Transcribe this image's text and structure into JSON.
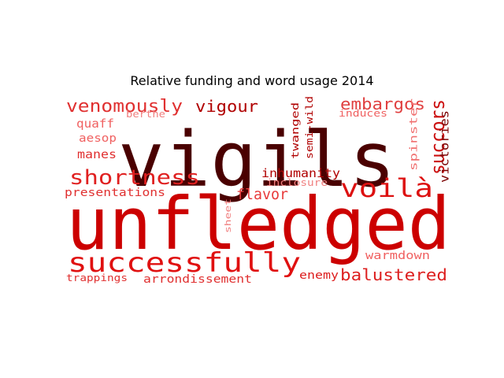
{
  "chart_data": {
    "type": "wordcloud",
    "title": "Relative funding and word usage 2014",
    "words": [
      {
        "text": "vigils",
        "weight": 100,
        "color": "#4a0000",
        "orientation": "horizontal"
      },
      {
        "text": "unfledged",
        "weight": 95,
        "color": "#cc0000",
        "orientation": "horizontal"
      },
      {
        "text": "successfully",
        "weight": 48,
        "color": "#e01010",
        "orientation": "horizontal"
      },
      {
        "text": "voilà",
        "weight": 42,
        "color": "#dd1010",
        "orientation": "horizontal"
      },
      {
        "text": "shortness",
        "weight": 34,
        "color": "#e02020",
        "orientation": "horizontal"
      },
      {
        "text": "venomously",
        "weight": 30,
        "color": "#e03030",
        "orientation": "horizontal"
      },
      {
        "text": "succors",
        "weight": 28,
        "color": "#cc1010",
        "orientation": "vertical"
      },
      {
        "text": "embargos",
        "weight": 27,
        "color": "#e04040",
        "orientation": "horizontal"
      },
      {
        "text": "balustered",
        "weight": 26,
        "color": "#dd2020",
        "orientation": "horizontal"
      },
      {
        "text": "vigour",
        "weight": 24,
        "color": "#b00000",
        "orientation": "horizontal"
      },
      {
        "text": "flavor",
        "weight": 22,
        "color": "#e83a3a",
        "orientation": "horizontal"
      },
      {
        "text": "inhumanity",
        "weight": 20,
        "color": "#b00000",
        "orientation": "horizontal"
      },
      {
        "text": "victories",
        "weight": 19,
        "color": "#7a0000",
        "orientation": "vertical"
      },
      {
        "text": "spinster",
        "weight": 17,
        "color": "#f07070",
        "orientation": "vertical"
      },
      {
        "text": "presentations",
        "weight": 16,
        "color": "#e03030",
        "orientation": "horizontal"
      },
      {
        "text": "arrondissement",
        "weight": 16,
        "color": "#e03030",
        "orientation": "horizontal"
      },
      {
        "text": "warmdown",
        "weight": 16,
        "color": "#f06060",
        "orientation": "horizontal"
      },
      {
        "text": "enemy",
        "weight": 16,
        "color": "#dd2020",
        "orientation": "horizontal"
      },
      {
        "text": "quaff",
        "weight": 16,
        "color": "#f06060",
        "orientation": "horizontal"
      },
      {
        "text": "aesop",
        "weight": 15,
        "color": "#f06060",
        "orientation": "horizontal"
      },
      {
        "text": "manes",
        "weight": 15,
        "color": "#e03030",
        "orientation": "horizontal"
      },
      {
        "text": "twanged",
        "weight": 13,
        "color": "#b00000",
        "orientation": "vertical"
      },
      {
        "text": "semi-wild",
        "weight": 13,
        "color": "#b00000",
        "orientation": "vertical"
      },
      {
        "text": "trappings",
        "weight": 13,
        "color": "#e03030",
        "orientation": "horizontal"
      },
      {
        "text": "induces",
        "weight": 12,
        "color": "#f06060",
        "orientation": "horizontal"
      },
      {
        "text": "inclosure",
        "weight": 12,
        "color": "#f08080",
        "orientation": "horizontal"
      },
      {
        "text": "berthe",
        "weight": 12,
        "color": "#f08080",
        "orientation": "horizontal"
      },
      {
        "text": "sheet",
        "weight": 10,
        "color": "#f08080",
        "orientation": "vertical"
      }
    ]
  }
}
